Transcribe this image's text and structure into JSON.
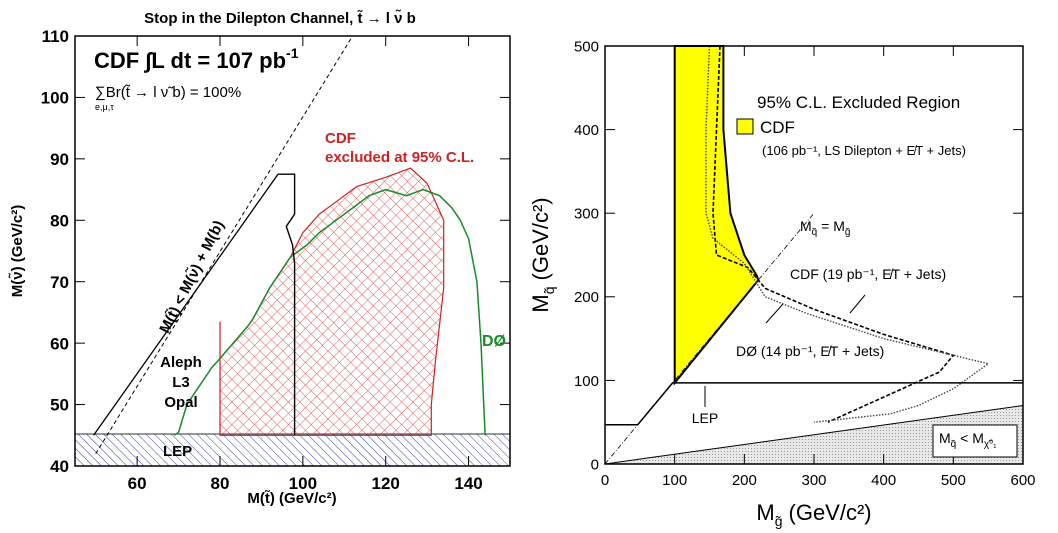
{
  "colors": {
    "red": "#cc2222",
    "green": "#1a8a2a",
    "yellow": "#ffff00",
    "blue": "#3344aa",
    "gray": "#cfcfcf"
  },
  "chart_data": [
    {
      "type": "area",
      "title": "Stop in the Dilepton Channel, t̃ → l ν̃ b",
      "xlabel": "M(t̃) (GeV/c²)",
      "ylabel": "M(ν̃) (GeV/c²)",
      "xlim": [
        45,
        150
      ],
      "ylim": [
        40,
        110
      ],
      "xticks": [
        "60",
        "80",
        "100",
        "120",
        "140"
      ],
      "yticks": [
        "40",
        "50",
        "60",
        "70",
        "80",
        "90",
        "100",
        "110"
      ],
      "annotations": {
        "lumi": "CDF ∫L dt = 107 pb",
        "lumi_exp": "-1",
        "br": "∑Br(t̃ → l ν̃ b) = 100%",
        "br_sub": "e,μ,τ",
        "kin": "M(t̃) < M(ν̃) + M(b)",
        "cdf_line1": "CDF",
        "cdf_line2": "excluded at 95% C.L.",
        "d0": "DØ",
        "aleph": "Aleph",
        "l3": "L3",
        "opal": "Opal",
        "lep": "LEP"
      },
      "series": [
        {
          "name": "CDF",
          "points": [
            [
              80,
              63.5
            ],
            [
              80,
              57.5
            ],
            [
              87,
              63
            ],
            [
              88,
              64
            ],
            [
              92,
              69
            ],
            [
              97,
              74
            ],
            [
              100,
              78
            ],
            [
              104,
              81
            ],
            [
              109,
              83.5
            ],
            [
              113,
              85.5
            ],
            [
              120,
              87
            ],
            [
              126,
              88.5
            ],
            [
              130,
              86
            ],
            [
              134,
              80
            ],
            [
              134,
              69
            ],
            [
              132,
              57
            ],
            [
              131,
              50
            ],
            [
              131,
              45
            ],
            [
              80,
              45
            ]
          ]
        },
        {
          "name": "DØ",
          "points": [
            [
              69,
              45
            ],
            [
              70,
              45.5
            ],
            [
              72,
              50
            ],
            [
              75,
              53
            ],
            [
              78,
              56
            ],
            [
              80,
              57.5
            ],
            [
              87,
              63
            ],
            [
              88,
              64
            ],
            [
              92,
              69
            ],
            [
              97,
              74
            ],
            [
              101,
              76
            ],
            [
              104,
              78
            ],
            [
              108,
              80
            ],
            [
              112,
              82
            ],
            [
              116,
              84
            ],
            [
              120,
              85
            ],
            [
              125,
              84
            ],
            [
              129,
              85
            ],
            [
              133,
              84
            ],
            [
              136,
              82
            ],
            [
              138,
              80
            ],
            [
              140,
              77
            ],
            [
              142,
              70
            ],
            [
              143,
              60
            ],
            [
              144,
              45
            ]
          ]
        },
        {
          "name": "Aleph L3 Opal",
          "points": [
            [
              94,
              87.5
            ],
            [
              98,
              87.5
            ],
            [
              98,
              81
            ],
            [
              96,
              79
            ],
            [
              97.5,
              76
            ],
            [
              98,
              73
            ],
            [
              98,
              67
            ],
            [
              98,
              60
            ],
            [
              98,
              50
            ],
            [
              98,
              45
            ]
          ]
        },
        {
          "name": "M(t̃) < M(ν̃) + M(b)",
          "points": [
            [
              49.5,
              45
            ],
            [
              94,
              87.5
            ]
          ]
        },
        {
          "name": "kinematic limit",
          "points": [
            [
              50,
              42
            ],
            [
              112,
              110
            ]
          ]
        },
        {
          "name": "LEP",
          "points": [
            [
              45,
              45
            ],
            [
              150,
              45
            ]
          ]
        }
      ]
    },
    {
      "type": "area",
      "xlabel": "M",
      "xlabel_sub": "g̃",
      "xlabel_units": "(GeV/c²)",
      "ylabel": "M",
      "ylabel_sub": "q̃",
      "ylabel_units": "(GeV/c²)",
      "xlim": [
        0,
        600
      ],
      "ylim": [
        0,
        500
      ],
      "xticks": [
        "0",
        "100",
        "200",
        "300",
        "400",
        "500",
        "600"
      ],
      "yticks": [
        "0",
        "100",
        "200",
        "300",
        "400",
        "500"
      ],
      "legend_title": "95% C.L. Excluded Region",
      "annotations": {
        "cdf_legend": "CDF",
        "cdf_legend_detail": "(106 pb⁻¹, LS Dilepton + E̸T + Jets)",
        "eq_label": "M",
        "eq_sub1": "q̃",
        "eq_mid": " = M",
        "eq_sub2": "g̃",
        "cdf_run1": "CDF (19 pb⁻¹, E̸T + Jets)",
        "d0_run1": "DØ (14 pb⁻¹, E̸T + Jets)",
        "lep": "LEP",
        "lsp_left": "M",
        "lsp_sub1": "q̃",
        "lsp_mid": " < M",
        "lsp_sub2": "χ̃⁰₁"
      },
      "series": [
        {
          "name": "CDF",
          "points": [
            [
              100,
              500
            ],
            [
              100,
              97
            ],
            [
              220,
              220
            ],
            [
              218,
              225
            ],
            [
              200,
              250
            ],
            [
              180,
              300
            ],
            [
              175,
              350
            ],
            [
              170,
              400
            ],
            [
              170,
              500
            ]
          ]
        },
        {
          "name": "CDF (19 pb⁻¹, E̸T + Jets)",
          "points": [
            [
              165,
              500
            ],
            [
              160,
              400
            ],
            [
              155,
              300
            ],
            [
              160,
              250
            ],
            [
              205,
              235
            ],
            [
              230,
              210
            ],
            [
              300,
              185
            ],
            [
              400,
              155
            ],
            [
              500,
              130
            ],
            [
              480,
              110
            ],
            [
              400,
              80
            ],
            [
              320,
              50
            ]
          ]
        },
        {
          "name": "DØ (14 pb⁻¹, E̸T + Jets)",
          "points": [
            [
              150,
              500
            ],
            [
              145,
              400
            ],
            [
              145,
              300
            ],
            [
              155,
              270
            ],
            [
              200,
              240
            ],
            [
              230,
              200
            ],
            [
              290,
              180
            ],
            [
              400,
              150
            ],
            [
              550,
              120
            ],
            [
              500,
              90
            ],
            [
              450,
              70
            ],
            [
              410,
              60
            ],
            [
              300,
              50
            ]
          ]
        },
        {
          "name": "LEP",
          "points": [
            [
              0,
              47
            ],
            [
              47,
              47
            ],
            [
              97,
              97
            ],
            [
              600,
              97
            ]
          ]
        },
        {
          "name": "M_q̃ = M_g̃",
          "points": [
            [
              0,
              0
            ],
            [
              300,
              300
            ]
          ]
        },
        {
          "name": "M_q̃ < M_χ̃⁰₁",
          "points": [
            [
              0,
              0
            ],
            [
              600,
              70
            ]
          ]
        }
      ]
    }
  ]
}
